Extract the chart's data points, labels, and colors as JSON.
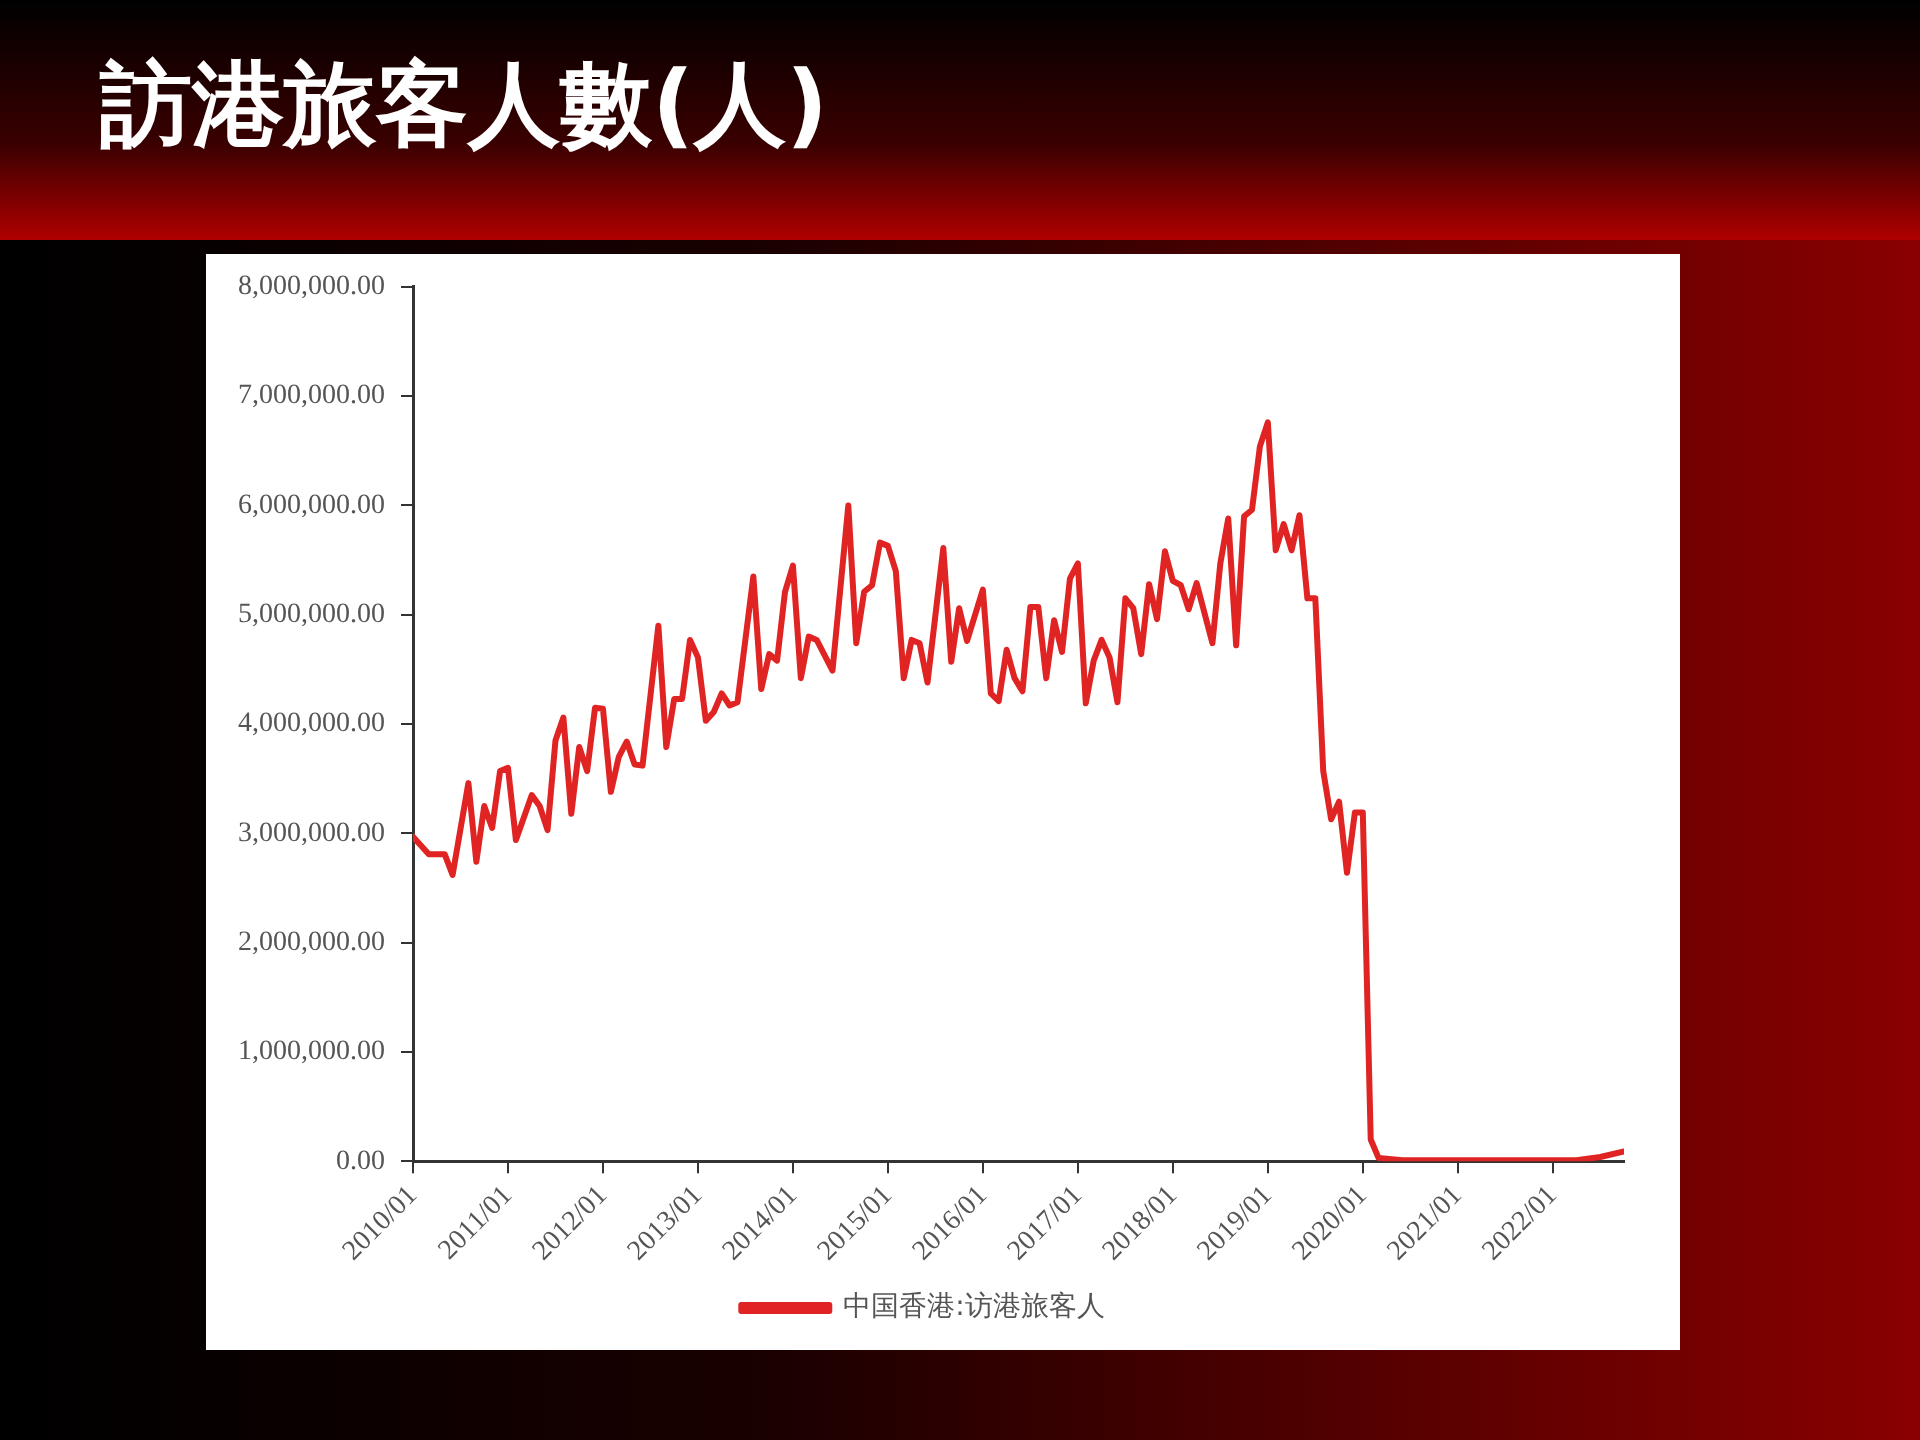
{
  "chart_data": {
    "type": "line",
    "title": "訪港旅客人數(人)",
    "x": [
      "2010-01",
      "2010-03",
      "2010-05",
      "2010-06",
      "2010-08",
      "2010-09",
      "2010-10",
      "2010-11",
      "2010-12",
      "2011-01",
      "2011-02",
      "2011-04",
      "2011-05",
      "2011-06",
      "2011-07",
      "2011-08",
      "2011-09",
      "2011-10",
      "2011-11",
      "2011-12",
      "2012-01",
      "2012-02",
      "2012-03",
      "2012-04",
      "2012-05",
      "2012-06",
      "2012-08",
      "2012-09",
      "2012-10",
      "2012-11",
      "2012-12",
      "2013-01",
      "2013-02",
      "2013-03",
      "2013-04",
      "2013-05",
      "2013-06",
      "2013-08",
      "2013-09",
      "2013-10",
      "2013-11",
      "2013-12",
      "2014-01",
      "2014-02",
      "2014-03",
      "2014-04",
      "2014-06",
      "2014-08",
      "2014-09",
      "2014-10",
      "2014-11",
      "2014-12",
      "2015-01",
      "2015-02",
      "2015-03",
      "2015-04",
      "2015-05",
      "2015-06",
      "2015-08",
      "2015-09",
      "2015-10",
      "2015-11",
      "2016-01",
      "2016-02",
      "2016-03",
      "2016-04",
      "2016-05",
      "2016-06",
      "2016-07",
      "2016-08",
      "2016-09",
      "2016-10",
      "2016-11",
      "2016-12",
      "2017-01",
      "2017-02",
      "2017-03",
      "2017-04",
      "2017-05",
      "2017-06",
      "2017-07",
      "2017-08",
      "2017-09",
      "2017-10",
      "2017-11",
      "2017-12",
      "2018-01",
      "2018-02",
      "2018-03",
      "2018-04",
      "2018-06",
      "2018-07",
      "2018-08",
      "2018-09",
      "2018-10",
      "2018-11",
      "2018-12",
      "2019-01",
      "2019-02",
      "2019-03",
      "2019-04",
      "2019-05",
      "2019-06",
      "2019-07",
      "2019-08",
      "2019-09",
      "2019-10",
      "2019-11",
      "2019-12",
      "2020-01",
      "2020-02",
      "2020-03",
      "2020-06",
      "2021-06",
      "2022-04",
      "2022-07",
      "2022-10"
    ],
    "series": [
      {
        "name": "中国香港:访港旅客人",
        "color": "#e02424",
        "values": [
          2970000,
          2810000,
          2810000,
          2620000,
          3460000,
          2740000,
          3250000,
          3050000,
          3570000,
          3600000,
          2940000,
          3350000,
          3250000,
          3030000,
          3850000,
          4060000,
          3180000,
          3790000,
          3570000,
          4150000,
          4140000,
          3380000,
          3700000,
          3840000,
          3630000,
          3620000,
          4900000,
          3790000,
          4230000,
          4230000,
          4770000,
          4610000,
          4030000,
          4110000,
          4280000,
          4170000,
          4200000,
          5350000,
          4320000,
          4640000,
          4580000,
          5210000,
          5450000,
          4420000,
          4800000,
          4770000,
          4490000,
          6000000,
          4740000,
          5210000,
          5270000,
          5660000,
          5630000,
          5400000,
          4420000,
          4770000,
          4740000,
          4380000,
          5610000,
          4570000,
          5060000,
          4760000,
          5230000,
          4280000,
          4210000,
          4680000,
          4420000,
          4300000,
          5070000,
          5070000,
          4420000,
          4950000,
          4660000,
          5330000,
          5470000,
          4190000,
          4580000,
          4770000,
          4610000,
          4200000,
          5150000,
          5060000,
          4640000,
          5280000,
          4960000,
          5580000,
          5310000,
          5270000,
          5050000,
          5290000,
          4740000,
          5470000,
          5880000,
          4720000,
          5900000,
          5960000,
          6540000,
          6760000,
          5590000,
          5830000,
          5590000,
          5910000,
          5150000,
          5150000,
          3570000,
          3130000,
          3290000,
          2640000,
          3190000,
          3190000,
          200000,
          30000,
          10000,
          10000,
          10000,
          40000,
          90000
        ]
      }
    ],
    "xlim": [
      "2010-01",
      "2022-10"
    ],
    "xticks": [
      {
        "value": "2010-01",
        "label": "2010/01"
      },
      {
        "value": "2011-01",
        "label": "2011/01"
      },
      {
        "value": "2012-01",
        "label": "2012/01"
      },
      {
        "value": "2013-01",
        "label": "2013/01"
      },
      {
        "value": "2014-01",
        "label": "2014/01"
      },
      {
        "value": "2015-01",
        "label": "2015/01"
      },
      {
        "value": "2016-01",
        "label": "2016/01"
      },
      {
        "value": "2017-01",
        "label": "2017/01"
      },
      {
        "value": "2018-01",
        "label": "2018/01"
      },
      {
        "value": "2019-01",
        "label": "2019/01"
      },
      {
        "value": "2020-01",
        "label": "2020/01"
      },
      {
        "value": "2021-01",
        "label": "2021/01"
      },
      {
        "value": "2022-01",
        "label": "2022/01"
      }
    ],
    "ylim": [
      0,
      8000000
    ],
    "yticks": [
      {
        "value": 0,
        "label": "0.00"
      },
      {
        "value": 1000000,
        "label": "1,000,000.00"
      },
      {
        "value": 2000000,
        "label": "2,000,000.00"
      },
      {
        "value": 3000000,
        "label": "3,000,000.00"
      },
      {
        "value": 4000000,
        "label": "4,000,000.00"
      },
      {
        "value": 5000000,
        "label": "5,000,000.00"
      },
      {
        "value": 6000000,
        "label": "6,000,000.00"
      },
      {
        "value": 7000000,
        "label": "7,000,000.00"
      },
      {
        "value": 8000000,
        "label": "8,000,000.00"
      }
    ],
    "grid": false,
    "legend": "bottom",
    "marker": "none",
    "line_style": "solid"
  }
}
